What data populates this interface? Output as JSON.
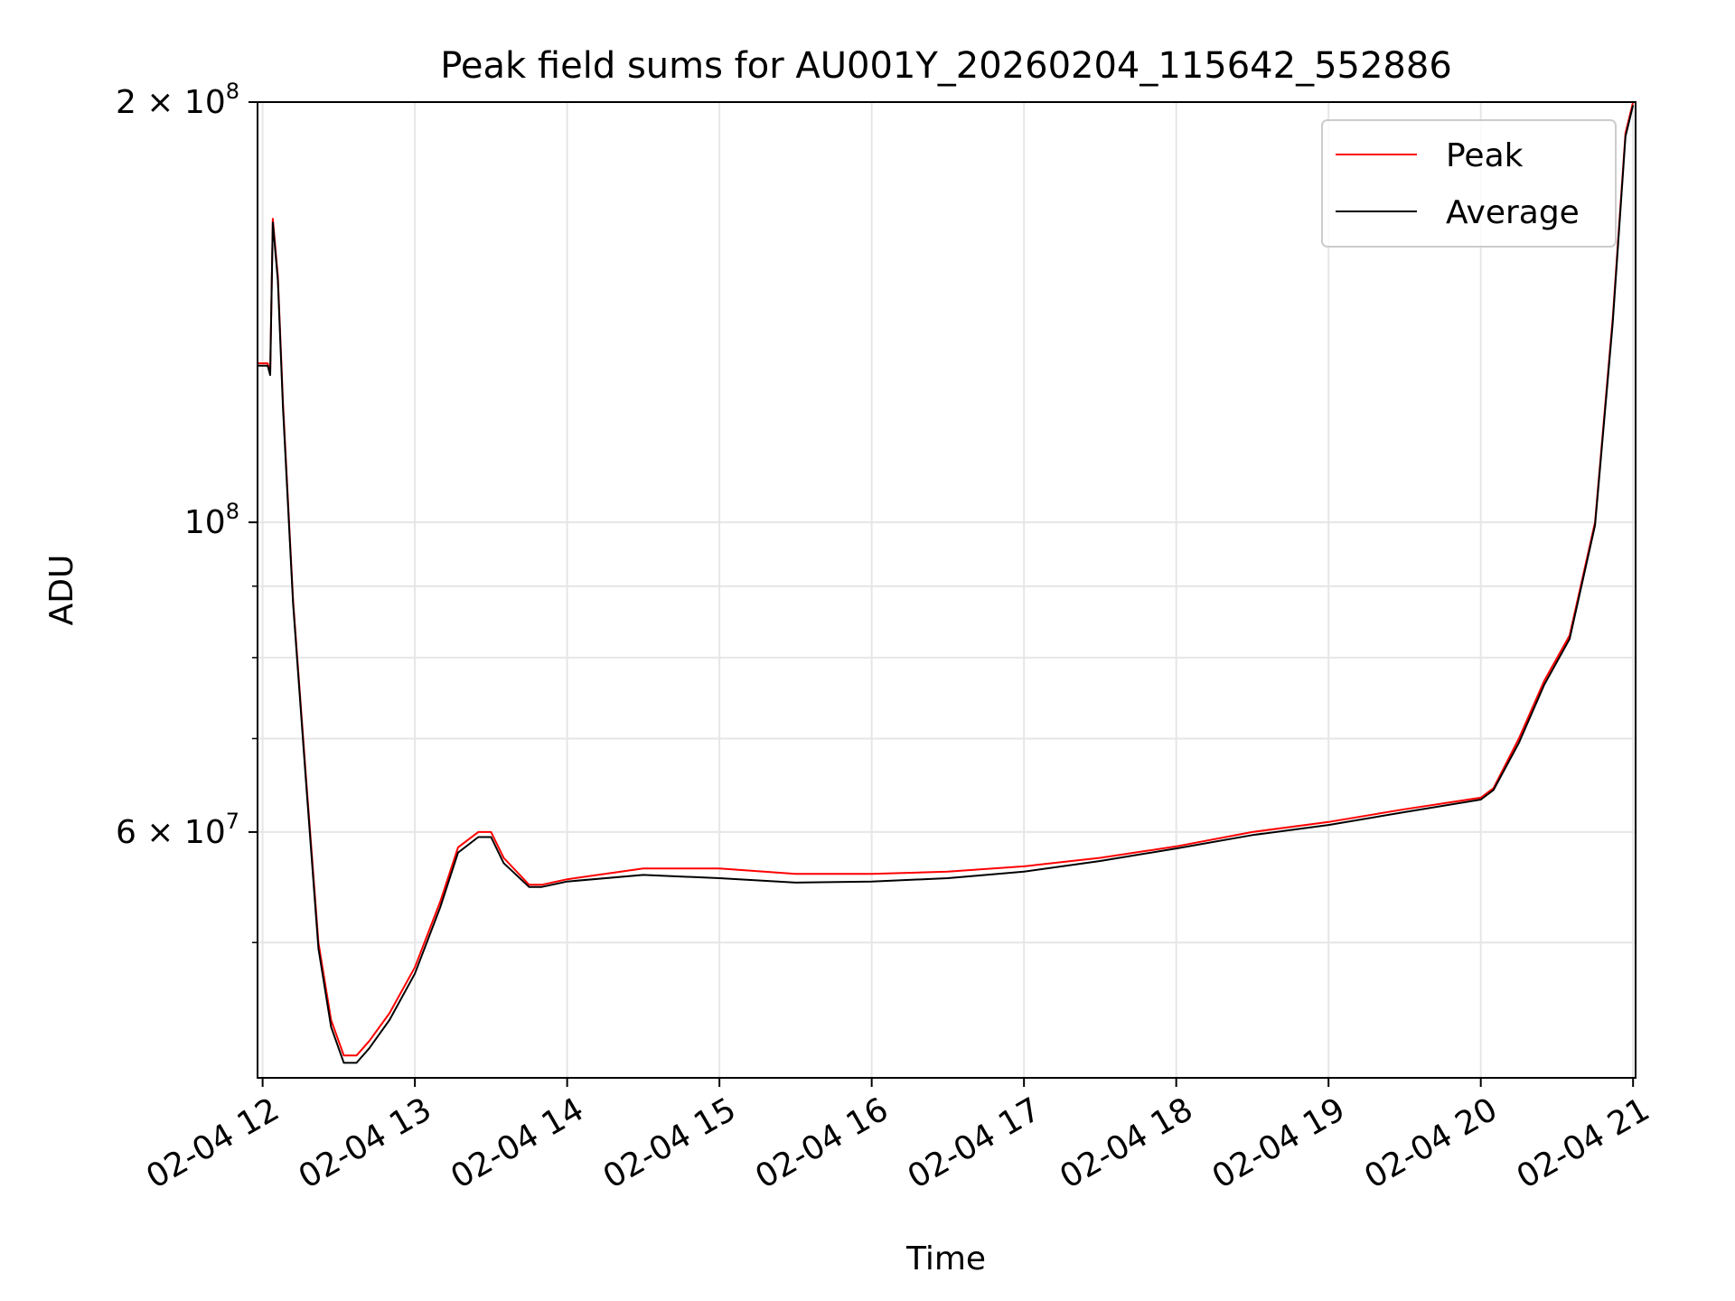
{
  "chart_data": {
    "type": "line",
    "title": "Peak field sums for AU001Y_20260204_115642_552886",
    "xlabel": "Time",
    "ylabel": "ADU",
    "yscale": "log",
    "xlim": [
      "2026-02-04 11:58",
      "2026-02-04 21:01"
    ],
    "ylim": [
      40000000,
      200000000
    ],
    "grid": true,
    "legend": "top-right",
    "x_ticks": [
      {
        "value": "2026-02-04 12:00",
        "label": "02-04 12"
      },
      {
        "value": "2026-02-04 13:00",
        "label": "02-04 13"
      },
      {
        "value": "2026-02-04 14:00",
        "label": "02-04 14"
      },
      {
        "value": "2026-02-04 15:00",
        "label": "02-04 15"
      },
      {
        "value": "2026-02-04 16:00",
        "label": "02-04 16"
      },
      {
        "value": "2026-02-04 17:00",
        "label": "02-04 17"
      },
      {
        "value": "2026-02-04 18:00",
        "label": "02-04 18"
      },
      {
        "value": "2026-02-04 19:00",
        "label": "02-04 19"
      },
      {
        "value": "2026-02-04 20:00",
        "label": "02-04 20"
      },
      {
        "value": "2026-02-04 21:00",
        "label": "02-04 21"
      }
    ],
    "y_major_ticks": [
      {
        "value": 200000000,
        "mantissa": "2",
        "exponent": "8"
      },
      {
        "value": 100000000,
        "mantissa": "",
        "exponent": "8"
      },
      {
        "value": 60000000,
        "mantissa": "6",
        "exponent": "7"
      }
    ],
    "y_minor_ticks": [
      50000000,
      70000000,
      80000000,
      90000000
    ],
    "series": [
      {
        "name": "Peak",
        "color": "#ff0000",
        "x": [
          "2026-02-04 11:58",
          "2026-02-04 12:02",
          "2026-02-04 12:03",
          "2026-02-04 12:04",
          "2026-02-04 12:06",
          "2026-02-04 12:08",
          "2026-02-04 12:12",
          "2026-02-04 12:17",
          "2026-02-04 12:22",
          "2026-02-04 12:27",
          "2026-02-04 12:32",
          "2026-02-04 12:37",
          "2026-02-04 12:42",
          "2026-02-04 12:50",
          "2026-02-04 13:00",
          "2026-02-04 13:10",
          "2026-02-04 13:17",
          "2026-02-04 13:25",
          "2026-02-04 13:30",
          "2026-02-04 13:35",
          "2026-02-04 13:45",
          "2026-02-04 13:50",
          "2026-02-04 14:00",
          "2026-02-04 14:30",
          "2026-02-04 15:00",
          "2026-02-04 15:30",
          "2026-02-04 16:00",
          "2026-02-04 16:30",
          "2026-02-04 17:00",
          "2026-02-04 17:30",
          "2026-02-04 18:00",
          "2026-02-04 18:30",
          "2026-02-04 19:00",
          "2026-02-04 19:30",
          "2026-02-04 20:00",
          "2026-02-04 20:05",
          "2026-02-04 20:15",
          "2026-02-04 20:25",
          "2026-02-04 20:35",
          "2026-02-04 20:45",
          "2026-02-04 20:52",
          "2026-02-04 20:57",
          "2026-02-04 21:00"
        ],
        "y": [
          130000000,
          130000000,
          128000000,
          165000000,
          150000000,
          122000000,
          88000000,
          66000000,
          50000000,
          44000000,
          41500000,
          41500000,
          42500000,
          44500000,
          48000000,
          53500000,
          58500000,
          60000000,
          60000000,
          57500000,
          55000000,
          55000000,
          55500000,
          56500000,
          56500000,
          56000000,
          56000000,
          56200000,
          56700000,
          57500000,
          58600000,
          60000000,
          61000000,
          62300000,
          63500000,
          64500000,
          70000000,
          77000000,
          83000000,
          100000000,
          140000000,
          190000000,
          200000000
        ]
      },
      {
        "name": "Average",
        "color": "#000000",
        "x": [
          "2026-02-04 11:58",
          "2026-02-04 12:02",
          "2026-02-04 12:03",
          "2026-02-04 12:04",
          "2026-02-04 12:06",
          "2026-02-04 12:08",
          "2026-02-04 12:12",
          "2026-02-04 12:17",
          "2026-02-04 12:22",
          "2026-02-04 12:27",
          "2026-02-04 12:32",
          "2026-02-04 12:37",
          "2026-02-04 12:42",
          "2026-02-04 12:50",
          "2026-02-04 13:00",
          "2026-02-04 13:10",
          "2026-02-04 13:17",
          "2026-02-04 13:25",
          "2026-02-04 13:30",
          "2026-02-04 13:35",
          "2026-02-04 13:45",
          "2026-02-04 13:50",
          "2026-02-04 14:00",
          "2026-02-04 14:30",
          "2026-02-04 15:00",
          "2026-02-04 15:30",
          "2026-02-04 16:00",
          "2026-02-04 16:30",
          "2026-02-04 17:00",
          "2026-02-04 17:30",
          "2026-02-04 18:00",
          "2026-02-04 18:30",
          "2026-02-04 19:00",
          "2026-02-04 19:30",
          "2026-02-04 20:00",
          "2026-02-04 20:05",
          "2026-02-04 20:15",
          "2026-02-04 20:25",
          "2026-02-04 20:35",
          "2026-02-04 20:45",
          "2026-02-04 20:52",
          "2026-02-04 20:57",
          "2026-02-04 21:00"
        ],
        "y": [
          129500000,
          129500000,
          127500000,
          164000000,
          149000000,
          121000000,
          87500000,
          65500000,
          49500000,
          43500000,
          41000000,
          41000000,
          42000000,
          44000000,
          47500000,
          53000000,
          58000000,
          59500000,
          59500000,
          57000000,
          54800000,
          54800000,
          55300000,
          55900000,
          55600000,
          55200000,
          55300000,
          55600000,
          56200000,
          57200000,
          58400000,
          59700000,
          60700000,
          62000000,
          63300000,
          64300000,
          69500000,
          76500000,
          82500000,
          99500000,
          139000000,
          189000000,
          199000000
        ]
      }
    ]
  }
}
